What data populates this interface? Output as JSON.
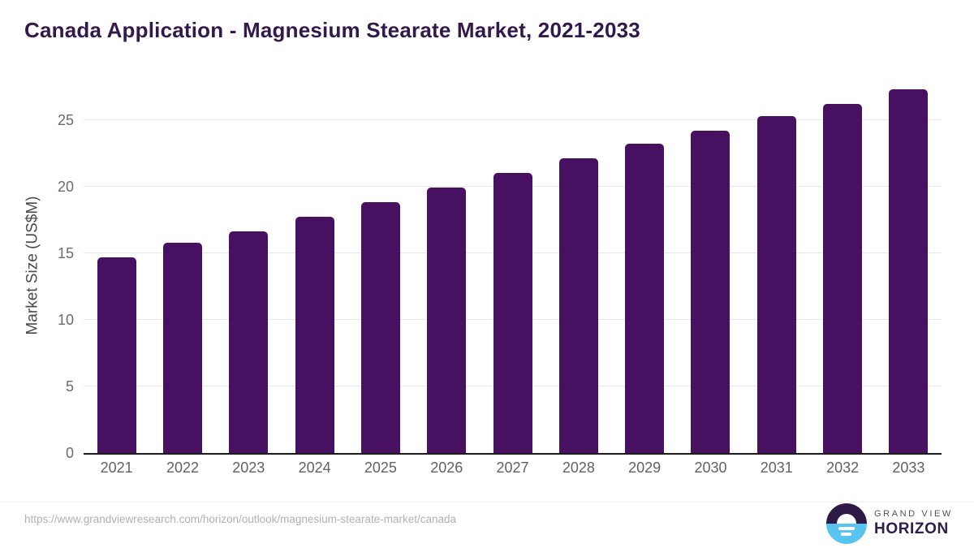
{
  "title": "Canada Application - Magnesium Stearate Market, 2021-2033",
  "chart_data": {
    "type": "bar",
    "title": "Canada Application - Magnesium Stearate Market, 2021-2033",
    "categories": [
      "2021",
      "2022",
      "2023",
      "2024",
      "2025",
      "2026",
      "2027",
      "2028",
      "2029",
      "2030",
      "2031",
      "2032",
      "2033"
    ],
    "values": [
      14.7,
      15.8,
      16.6,
      17.7,
      18.8,
      19.9,
      21.0,
      22.1,
      23.2,
      24.2,
      25.3,
      26.2,
      27.3
    ],
    "xlabel": "",
    "ylabel": "Market Size (US$M)",
    "ylim": [
      0,
      28.2
    ],
    "yticks": [
      0,
      5,
      10,
      15,
      20,
      25
    ],
    "bar_color": "#481060",
    "grid": "horizontal",
    "legend": "none"
  },
  "footer": {
    "source_url": "https://www.grandviewresearch.com/horizon/outlook/magnesium-stearate-market/canada",
    "logo": {
      "line1": "GRAND VIEW",
      "line2": "HORIZON"
    }
  },
  "colors": {
    "title": "#311a4b",
    "bar": "#481060",
    "gridline": "#e7e7e7",
    "axis_line": "#1b1b1b",
    "tick_label": "#616161",
    "url_text": "#b1b1b1",
    "logo_purple": "#2e1a47",
    "logo_blue": "#58c5f0"
  }
}
